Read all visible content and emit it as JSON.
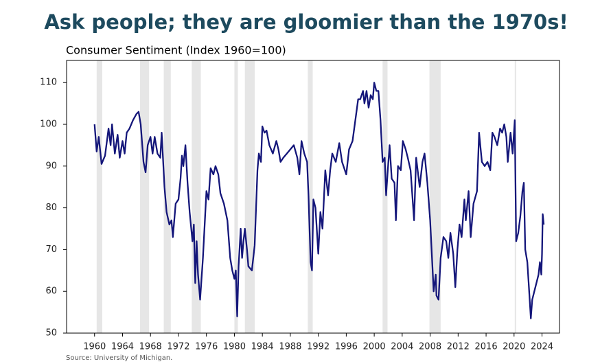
{
  "chart_data": {
    "type": "line",
    "title": "Ask people; they are gloomier than the 1970s!",
    "subtitle": "Consumer Sentiment (Index 1960=100)",
    "source": "Source: University of Michigan.",
    "xlim": [
      1956,
      2026.5
    ],
    "ylim": [
      50,
      115.3
    ],
    "xticks": [
      1960,
      1964,
      1968,
      1972,
      1976,
      1980,
      1984,
      1988,
      1992,
      1996,
      2000,
      2004,
      2008,
      2012,
      2016,
      2020,
      2024
    ],
    "yticks": [
      50,
      60,
      70,
      80,
      90,
      100,
      110
    ],
    "shaded_periods": [
      [
        1960.3,
        1961.1
      ],
      [
        1966.5,
        1967.8
      ],
      [
        1969.9,
        1970.9
      ],
      [
        1973.9,
        1975.2
      ],
      [
        1980.0,
        1980.5
      ],
      [
        1981.5,
        1982.9
      ],
      [
        1990.5,
        1991.2
      ],
      [
        2001.2,
        2001.9
      ],
      [
        2007.9,
        2009.5
      ],
      [
        2020.1,
        2020.3
      ]
    ],
    "shade_color": "#e6e6e6",
    "series": [
      {
        "color": "#14167a",
        "x": [
          1960.0,
          1960.3,
          1960.6,
          1961.0,
          1961.5,
          1962.0,
          1962.3,
          1962.5,
          1962.9,
          1963.3,
          1963.6,
          1964.0,
          1964.3,
          1964.6,
          1965.0,
          1965.5,
          1966.0,
          1966.3,
          1966.6,
          1967.0,
          1967.3,
          1967.6,
          1968.0,
          1968.3,
          1968.6,
          1969.0,
          1969.4,
          1969.6,
          1970.0,
          1970.3,
          1970.7,
          1971.0,
          1971.2,
          1971.6,
          1972.0,
          1972.3,
          1972.5,
          1972.7,
          1973.0,
          1973.3,
          1973.6,
          1974.0,
          1974.2,
          1974.4,
          1974.6,
          1974.8,
          1975.1,
          1975.5,
          1976.0,
          1976.3,
          1976.6,
          1977.0,
          1977.3,
          1977.7,
          1978.0,
          1978.5,
          1979.0,
          1979.4,
          1979.7,
          1980.0,
          1980.2,
          1980.4,
          1980.6,
          1980.9,
          1981.1,
          1981.3,
          1981.5,
          1981.8,
          1982.0,
          1982.5,
          1982.9,
          1983.3,
          1983.5,
          1983.8,
          1984.0,
          1984.3,
          1984.6,
          1985.0,
          1985.5,
          1986.0,
          1986.3,
          1986.6,
          1987.0,
          1987.5,
          1988.0,
          1988.5,
          1989.0,
          1989.3,
          1989.6,
          1990.0,
          1990.4,
          1990.6,
          1990.9,
          1991.1,
          1991.3,
          1991.6,
          1992.0,
          1992.3,
          1992.6,
          1993.0,
          1993.4,
          1993.7,
          1994.0,
          1994.5,
          1995.0,
          1995.4,
          1995.8,
          1996.0,
          1996.4,
          1996.9,
          1997.3,
          1997.7,
          1998.0,
          1998.4,
          1998.6,
          1998.9,
          1999.2,
          1999.5,
          1999.8,
          2000.0,
          2000.3,
          2000.6,
          2000.9,
          2001.2,
          2001.5,
          2001.7,
          2001.9,
          2002.2,
          2002.5,
          2002.9,
          2003.1,
          2003.4,
          2003.8,
          2004.1,
          2004.5,
          2004.8,
          2005.2,
          2005.7,
          2006.0,
          2006.5,
          2006.9,
          2007.2,
          2007.6,
          2008.0,
          2008.5,
          2008.8,
          2008.9,
          2009.2,
          2009.5,
          2009.9,
          2010.3,
          2010.6,
          2010.9,
          2011.3,
          2011.6,
          2011.9,
          2012.2,
          2012.5,
          2012.9,
          2013.1,
          2013.5,
          2013.8,
          2014.2,
          2014.7,
          2015.0,
          2015.4,
          2015.8,
          2016.2,
          2016.6,
          2016.9,
          2017.2,
          2017.6,
          2018.0,
          2018.3,
          2018.6,
          2018.9,
          2019.1,
          2019.5,
          2019.8,
          2020.1,
          2020.3,
          2020.6,
          2020.9,
          2021.2,
          2021.4,
          2021.6,
          2021.9,
          2022.2,
          2022.4,
          2022.6,
          2022.9,
          2023.2,
          2023.5,
          2023.7,
          2023.9,
          2024.0,
          2024.1,
          2024.25
        ],
        "values": [
          100,
          93.5,
          97,
          90.5,
          92.5,
          99,
          95,
          100,
          93,
          97.5,
          92,
          96,
          93,
          98,
          99,
          101,
          102.5,
          103,
          100,
          91,
          88.5,
          95,
          97,
          93,
          97,
          93,
          92,
          98,
          85,
          79,
          76,
          77,
          73,
          81,
          82,
          87,
          92.5,
          90,
          95,
          86,
          79,
          72,
          76,
          62,
          72,
          64,
          58,
          68,
          84,
          82,
          89.5,
          88,
          90,
          88,
          83.5,
          81,
          77,
          68,
          65,
          63,
          65,
          54,
          66,
          75,
          68,
          72,
          75,
          70,
          66,
          65,
          71,
          89,
          93,
          91,
          99.5,
          98,
          98.5,
          95,
          93,
          96,
          94,
          91,
          92,
          93,
          94,
          95,
          92,
          88,
          96,
          93,
          91,
          83,
          67,
          65,
          82,
          80,
          69,
          79,
          75,
          89,
          83,
          89,
          93,
          91,
          95.5,
          91,
          89,
          88,
          94,
          96,
          101,
          106,
          106,
          108,
          105,
          108,
          104,
          107,
          106,
          110,
          108,
          108,
          101,
          91,
          92,
          83,
          88,
          95,
          87,
          86,
          77,
          90,
          89,
          96,
          94,
          92,
          89,
          77,
          92,
          85,
          91,
          93,
          86,
          77,
          60,
          64,
          59,
          58,
          68,
          73,
          72,
          68,
          74,
          69,
          61,
          70,
          76,
          73,
          82,
          77,
          84,
          73,
          81,
          84,
          98,
          91,
          90,
          91,
          89,
          98,
          97,
          95,
          99,
          98,
          100,
          97,
          91,
          98,
          93,
          101,
          72,
          74,
          78,
          84,
          86,
          70,
          67,
          59,
          53.5,
          58,
          60,
          62,
          64,
          67,
          64,
          69,
          78.5,
          76
        ]
      }
    ]
  }
}
